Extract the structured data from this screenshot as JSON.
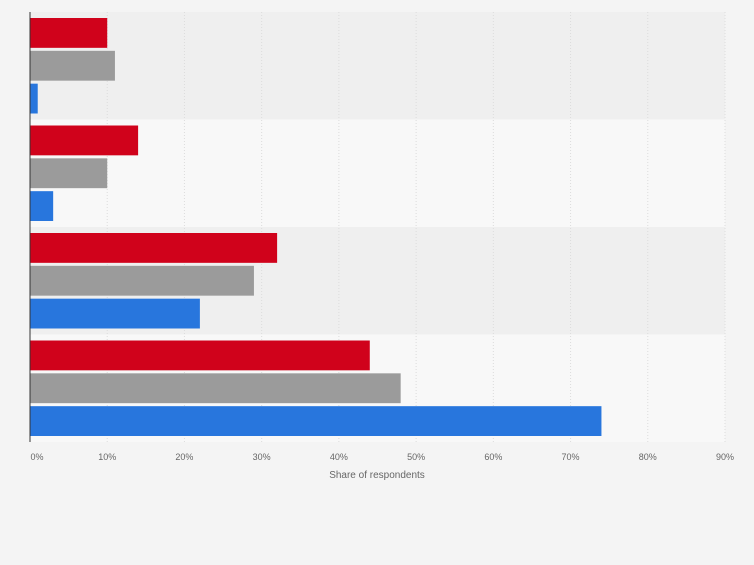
{
  "chart_data": {
    "type": "bar",
    "orientation": "horizontal",
    "title": "",
    "xlabel": "Share of respondents",
    "ylabel": "",
    "xlim": [
      0,
      90
    ],
    "x_ticks": [
      0,
      10,
      20,
      30,
      40,
      50,
      60,
      70,
      80,
      90
    ],
    "x_tick_labels": [
      "0%",
      "10%",
      "20%",
      "30%",
      "40%",
      "50%",
      "60%",
      "70%",
      "80%",
      "90%"
    ],
    "grid": true,
    "legend": "none",
    "categories": [
      "",
      "",
      "",
      ""
    ],
    "series": [
      {
        "color": "#d0021b",
        "values": [
          10,
          14,
          32,
          44
        ]
      },
      {
        "color": "#9b9b9b",
        "values": [
          11,
          10,
          29,
          48
        ]
      },
      {
        "color": "#2876dd",
        "values": [
          1,
          3,
          22,
          74
        ]
      }
    ]
  }
}
